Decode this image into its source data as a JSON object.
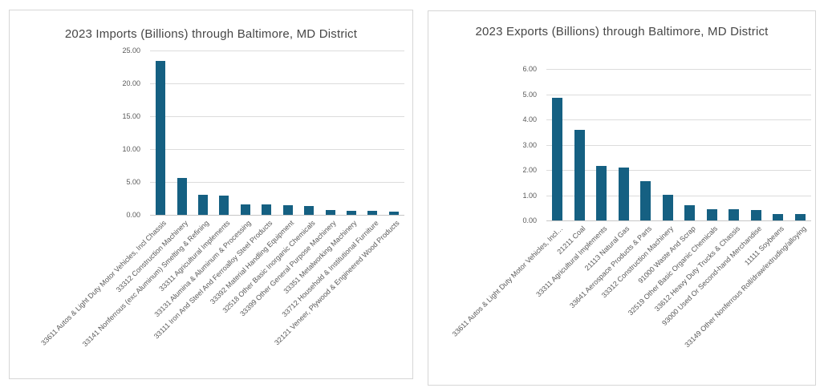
{
  "accent_color": "#156082",
  "chart_data": [
    {
      "type": "bar",
      "title": "2023 Imports (Billions) through Baltimore, MD District",
      "xlabel": "",
      "ylabel": "",
      "ylim": [
        0,
        25
      ],
      "ytick_step": 5,
      "yticks": [
        "25.00",
        "20.00",
        "15.00",
        "10.00",
        "5.00",
        "0.00"
      ],
      "grid": "horizontal",
      "legend": "none",
      "bar_color": "#156082",
      "categories": [
        "33611 Autos & Light Duty Motor Vehicles, Incl Chassis",
        "33312 Construction Machinery",
        "33141 Nonferrous (exc Aluminum) Smelting & Refining",
        "33311 Agricultural Implements",
        "33131 Alumina & Aluminum & Processing",
        "33111 Iron And Steel And Ferroalloy Steel Products",
        "33392 Material Handling Equipment",
        "32518 Other Basic Inorganic Chemicals",
        "33399 Other General Purpose Machinery",
        "33351 Metalworking Machinery",
        "33712 Household & Institutional Furniture",
        "32121 Veneer, Plywood & Engineered Wood Products"
      ],
      "values": [
        23.4,
        5.6,
        3.1,
        2.9,
        1.6,
        1.55,
        1.5,
        1.4,
        0.7,
        0.65,
        0.6,
        0.5
      ]
    },
    {
      "type": "bar",
      "title": "2023 Exports (Billions) through Baltimore, MD District",
      "xlabel": "",
      "ylabel": "",
      "ylim": [
        0,
        6
      ],
      "ytick_step": 1,
      "yticks": [
        "6.00",
        "5.00",
        "4.00",
        "3.00",
        "2.00",
        "1.00",
        "0.00"
      ],
      "grid": "horizontal",
      "legend": "none",
      "bar_color": "#156082",
      "categories": [
        "33611 Autos & Light Duty Motor Vehicles, Incl…",
        "21211 Coal",
        "33311 Agricultural Implements",
        "21113 Natural Gas",
        "33641 Aerospace Products & Parts",
        "33312 Construction Machinery",
        "91000 Waste And Scrap",
        "32519 Other Basic Organic Chemicals",
        "33612 Heavy Duty Trucks & Chassis",
        "93000 Used Or Second-hand Merchandise",
        "11111 Soybeans",
        "33149 Other Nonferrous Roll/draw/extruding/alloying"
      ],
      "values": [
        4.85,
        3.6,
        2.15,
        2.1,
        1.55,
        1.0,
        0.6,
        0.45,
        0.45,
        0.4,
        0.25,
        0.25
      ]
    }
  ]
}
